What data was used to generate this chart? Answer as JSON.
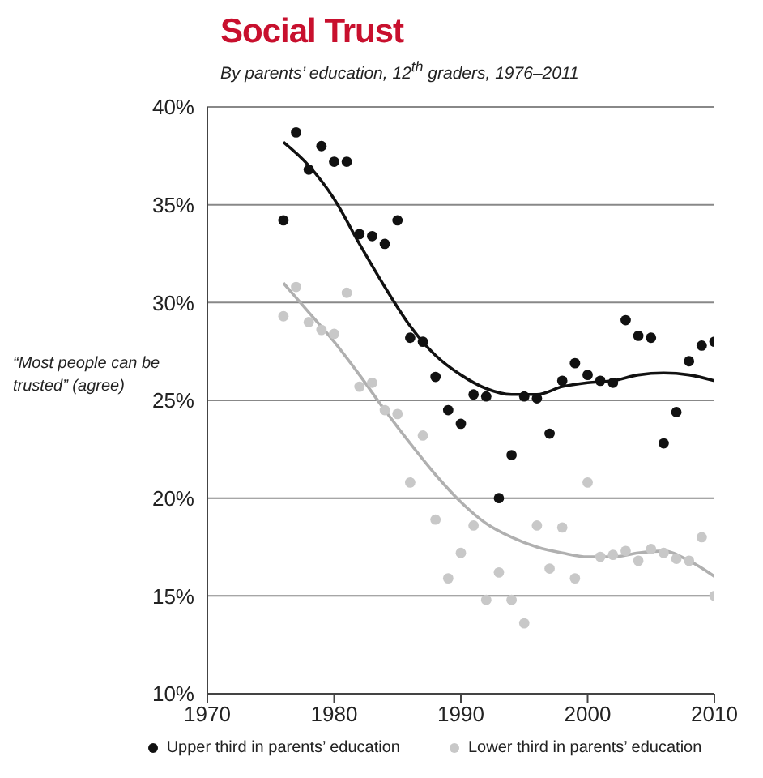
{
  "chart_data": {
    "type": "scatter",
    "title": "Social Trust",
    "subtitle": "By parents’ education, 12$^{th}$ graders, 1976–2011",
    "ylabel": "“Most people can be trusted” (agree)",
    "xlim": [
      1970,
      2010
    ],
    "xticks": [
      1970,
      1980,
      1990,
      2000,
      2010
    ],
    "ylim": [
      10,
      40
    ],
    "yticks": [
      {
        "value": 10,
        "label": "10%"
      },
      {
        "value": 15,
        "label": "15%"
      },
      {
        "value": 20,
        "label": "20%"
      },
      {
        "value": 25,
        "label": "25%"
      },
      {
        "value": 30,
        "label": "30%"
      },
      {
        "value": 35,
        "label": "35%"
      },
      {
        "value": 40,
        "label": "40%"
      }
    ],
    "grid": "y",
    "legend": "bottom",
    "marker": "circle",
    "series": [
      {
        "name": "Upper third in parents’ education",
        "color": "#111111",
        "x": [
          1976,
          1977,
          1978,
          1979,
          1980,
          1981,
          1982,
          1983,
          1984,
          1985,
          1986,
          1987,
          1988,
          1989,
          1990,
          1991,
          1992,
          1993,
          1994,
          1995,
          1996,
          1997,
          1998,
          1999,
          2000,
          2001,
          2002,
          2003,
          2004,
          2005,
          2006,
          2007,
          2008,
          2009,
          2010
        ],
        "values": [
          34.2,
          38.7,
          36.8,
          38.0,
          37.2,
          37.2,
          33.5,
          33.4,
          33.0,
          34.2,
          28.2,
          28.0,
          26.2,
          24.5,
          23.8,
          25.3,
          25.2,
          20.0,
          22.2,
          25.2,
          25.1,
          23.3,
          26.0,
          26.9,
          26.3,
          26.0,
          25.9,
          29.1,
          28.3,
          28.2,
          22.8,
          24.4,
          27.0,
          27.8,
          28.0
        ]
      },
      {
        "name": "Lower third in parents’ education",
        "color": "#c8c8c8",
        "x": [
          1976,
          1977,
          1978,
          1979,
          1980,
          1981,
          1982,
          1983,
          1984,
          1985,
          1986,
          1987,
          1988,
          1989,
          1990,
          1991,
          1992,
          1993,
          1994,
          1995,
          1996,
          1997,
          1998,
          1999,
          2000,
          2001,
          2002,
          2003,
          2004,
          2005,
          2006,
          2007,
          2008,
          2009,
          2010
        ],
        "values": [
          29.3,
          30.8,
          29.0,
          28.6,
          28.4,
          30.5,
          25.7,
          25.9,
          24.5,
          24.3,
          20.8,
          23.2,
          18.9,
          15.9,
          17.2,
          18.6,
          14.8,
          16.2,
          14.8,
          13.6,
          18.6,
          16.4,
          18.5,
          15.9,
          20.8,
          17.0,
          17.1,
          17.3,
          16.8,
          17.4,
          17.2,
          16.9,
          16.8,
          18.0,
          15.0
        ]
      },
      {
        "type": "line",
        "marker": "none",
        "color": "#111111",
        "x": [
          1976,
          1978,
          1980,
          1982,
          1984,
          1986,
          1988,
          1990,
          1992,
          1994,
          1996,
          1998,
          2000,
          2002,
          2004,
          2006,
          2008,
          2010
        ],
        "values": [
          38.2,
          37.0,
          35.3,
          33.0,
          30.8,
          28.8,
          27.3,
          26.3,
          25.6,
          25.3,
          25.3,
          25.7,
          25.9,
          26.0,
          26.3,
          26.4,
          26.3,
          26.0
        ]
      },
      {
        "type": "line",
        "marker": "none",
        "color": "#b0b0b0",
        "x": [
          1976,
          1978,
          1980,
          1982,
          1984,
          1986,
          1988,
          1990,
          1992,
          1994,
          1996,
          1998,
          2000,
          2002,
          2004,
          2006,
          2008,
          2010
        ],
        "values": [
          31.0,
          29.5,
          28.0,
          26.3,
          24.5,
          22.8,
          21.2,
          19.8,
          18.7,
          18.0,
          17.5,
          17.2,
          17.0,
          17.0,
          17.2,
          17.3,
          16.8,
          16.0
        ]
      }
    ]
  }
}
